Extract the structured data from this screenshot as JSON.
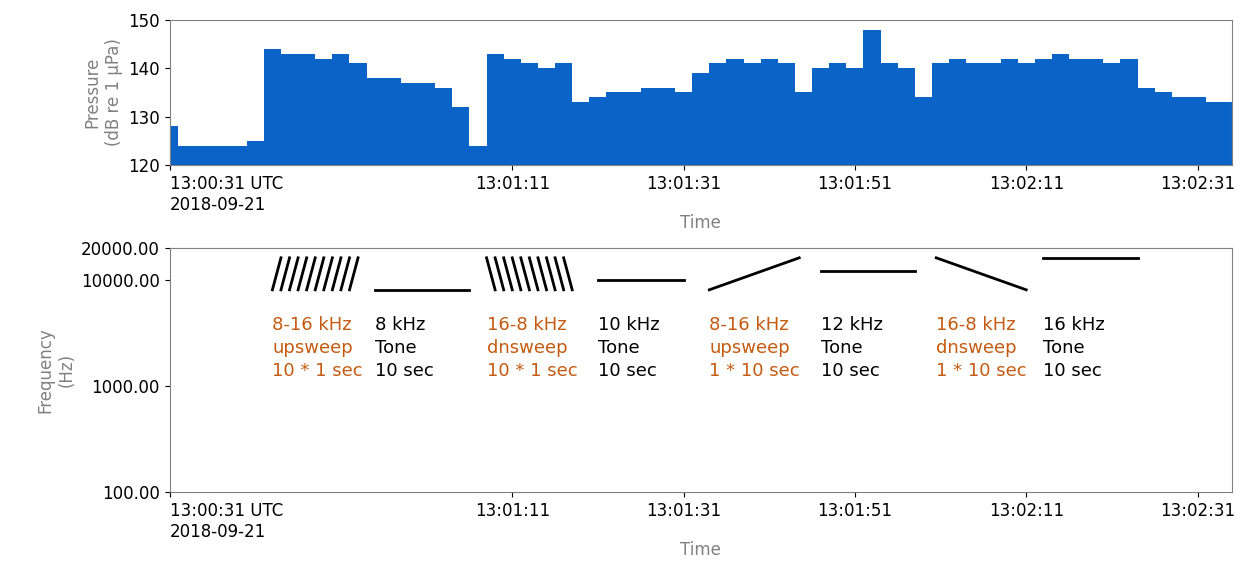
{
  "chart_data": [
    {
      "type": "area",
      "ylabel": "Pressure\n(dB re 1 μPa)",
      "xlabel": "Time",
      "x": [
        0,
        2,
        4,
        6,
        8,
        10,
        12,
        14,
        16,
        18,
        20,
        22,
        24,
        26,
        28,
        30,
        32,
        34,
        36,
        38,
        40,
        42,
        44,
        46,
        48,
        50,
        52,
        54,
        56,
        58,
        60,
        62,
        64,
        66,
        68,
        70,
        72,
        74,
        76,
        78,
        80,
        82,
        84,
        86,
        88,
        90,
        92,
        94,
        96,
        98,
        100,
        102,
        104,
        106,
        108,
        110,
        112,
        114,
        116,
        118,
        120,
        122,
        124
      ],
      "series": [
        {
          "name": "Pressure",
          "color": "#0a64c8",
          "values": [
            128,
            124,
            124,
            124,
            124,
            125,
            144,
            143,
            143,
            142,
            143,
            141,
            138,
            138,
            137,
            137,
            136,
            132,
            124,
            143,
            142,
            141,
            140,
            141,
            133,
            134,
            135,
            135,
            136,
            136,
            135,
            139,
            141,
            142,
            141,
            142,
            141,
            135,
            140,
            141,
            140,
            148,
            141,
            140,
            134,
            141,
            142,
            141,
            141,
            142,
            141,
            142,
            143,
            142,
            142,
            141,
            142,
            136,
            135,
            134,
            134,
            133,
            133
          ]
        }
      ],
      "xlim": [
        0,
        124
      ],
      "xticks": [
        {
          "value": 0,
          "label": "13:00:31 UTC\n2018-09-21"
        },
        {
          "value": 40,
          "label": "13:01:11"
        },
        {
          "value": 60,
          "label": "13:01:31"
        },
        {
          "value": 80,
          "label": "13:01:51"
        },
        {
          "value": 100,
          "label": "13:02:11"
        },
        {
          "value": 120,
          "label": "13:02:31"
        }
      ],
      "ylim": [
        120,
        150
      ],
      "yticks": [
        120,
        130,
        140,
        150
      ]
    },
    {
      "type": "spectrogram",
      "ylabel": "Frequency\n(Hz)",
      "xlabel": "Time",
      "log": "y",
      "xlim": [
        0,
        124
      ],
      "xticks": [
        {
          "value": 0,
          "label": "13:00:31 UTC\n2018-09-21"
        },
        {
          "value": 40,
          "label": "13:01:11"
        },
        {
          "value": 60,
          "label": "13:01:31"
        },
        {
          "value": 80,
          "label": "13:01:51"
        },
        {
          "value": 100,
          "label": "13:02:11"
        },
        {
          "value": 120,
          "label": "13:02:31"
        }
      ],
      "ylim": [
        100,
        20000
      ],
      "yticks": [
        {
          "value": 100,
          "label": "100.00"
        },
        {
          "value": 1000,
          "label": "1000.00"
        },
        {
          "value": 10000,
          "label": "10000.00"
        },
        {
          "value": 20000,
          "label": "20000.00"
        }
      ],
      "signals": [
        {
          "name": "8-16 kHz\nupsweep\n10 * 1 sec",
          "color": "#c55a11",
          "start": 12,
          "duration": 1,
          "count": 10,
          "f_start": 8000,
          "f_end": 16000
        },
        {
          "name": "8 kHz\nTone\n10 sec",
          "color": "#000000",
          "start": 24,
          "duration": 11,
          "count": 1,
          "f_start": 8000,
          "f_end": 8000
        },
        {
          "name": "16-8 kHz\ndnsweep\n10 * 1 sec",
          "color": "#c55a11",
          "start": 37,
          "duration": 1,
          "count": 10,
          "f_start": 16000,
          "f_end": 8000
        },
        {
          "name": "10 kHz\nTone\n10 sec",
          "color": "#000000",
          "start": 50,
          "duration": 10,
          "count": 1,
          "f_start": 10000,
          "f_end": 10000
        },
        {
          "name": "8-16 kHz\nupsweep\n1 * 10 sec",
          "color": "#c55a11",
          "start": 63,
          "duration": 10.5,
          "count": 1,
          "f_start": 8000,
          "f_end": 16000
        },
        {
          "name": "12 kHz\nTone\n10 sec",
          "color": "#000000",
          "start": 76,
          "duration": 11,
          "count": 1,
          "f_start": 12000,
          "f_end": 12000
        },
        {
          "name": "16-8 kHz\ndnsweep\n1 * 10 sec",
          "color": "#c55a11",
          "start": 89.5,
          "duration": 10.5,
          "count": 1,
          "f_start": 16000,
          "f_end": 8000
        },
        {
          "name": "16 kHz\nTone\n10 sec",
          "color": "#000000",
          "start": 102,
          "duration": 11,
          "count": 1,
          "f_start": 16000,
          "f_end": 16000
        }
      ]
    }
  ]
}
